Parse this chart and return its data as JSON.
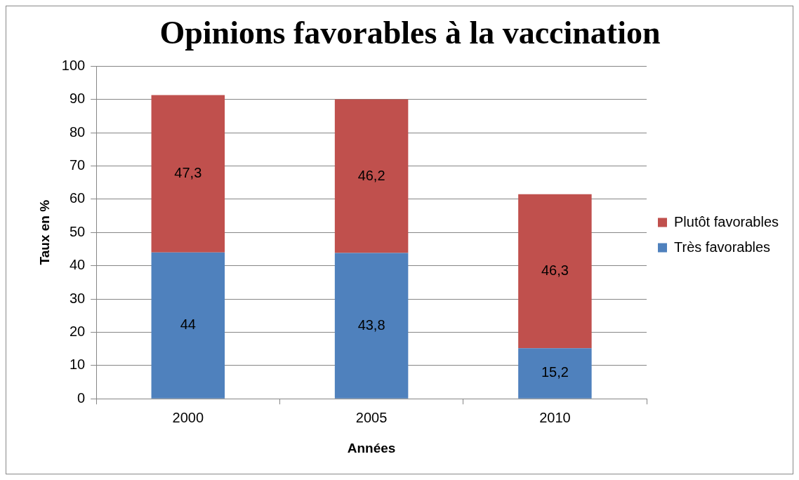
{
  "chart_data": {
    "type": "bar",
    "title": "Opinions favorables à la vaccination",
    "xlabel": "Années",
    "ylabel": "Taux en %",
    "categories": [
      "2000",
      "2005",
      "2010"
    ],
    "series": [
      {
        "name": "Très favorables",
        "color": "#4f81bd",
        "values": [
          44,
          43.8,
          15.2
        ],
        "value_labels": [
          "44",
          "43,8",
          "15,2"
        ]
      },
      {
        "name": "Plutôt favorables",
        "color": "#c0504d",
        "values": [
          47.3,
          46.2,
          46.3
        ],
        "value_labels": [
          "47,3",
          "46,2",
          "46,3"
        ]
      }
    ],
    "stacked": true,
    "ylim": [
      0,
      100
    ],
    "yticks": [
      0,
      10,
      20,
      30,
      40,
      50,
      60,
      70,
      80,
      90,
      100
    ],
    "grid": "y",
    "legend": "right"
  }
}
